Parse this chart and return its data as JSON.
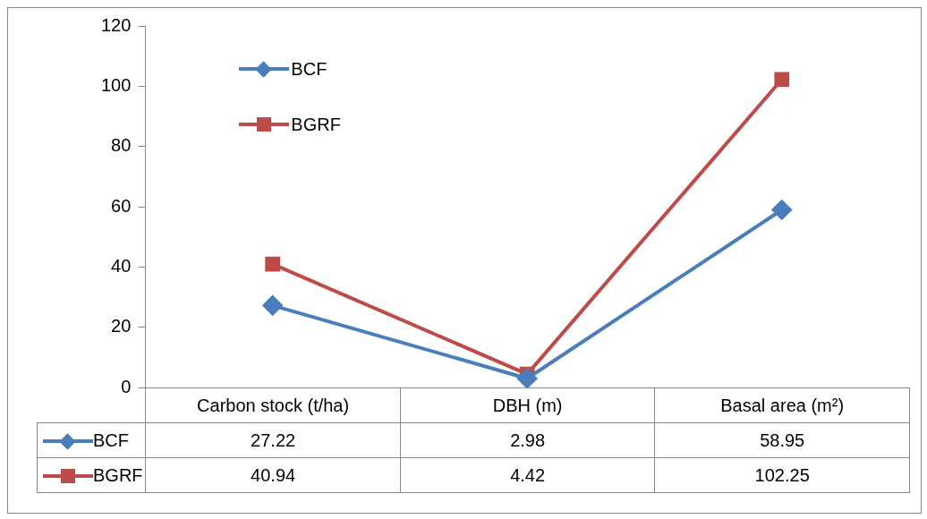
{
  "chart_data": {
    "type": "line",
    "categories": [
      "Carbon stock (t/ha)",
      "DBH (m)",
      "Basal area (m²)"
    ],
    "series": [
      {
        "name": "BCF",
        "color": "#4a7ebb",
        "marker": "diamond",
        "values": [
          27.22,
          2.98,
          58.95
        ]
      },
      {
        "name": "BGRF",
        "color": "#be4b48",
        "marker": "square",
        "values": [
          40.94,
          4.42,
          102.25
        ]
      }
    ],
    "ylim": [
      0,
      120
    ],
    "yticks": [
      0,
      20,
      40,
      60,
      80,
      100,
      120
    ],
    "grid": false,
    "legend": "top left",
    "data_labels": true
  }
}
